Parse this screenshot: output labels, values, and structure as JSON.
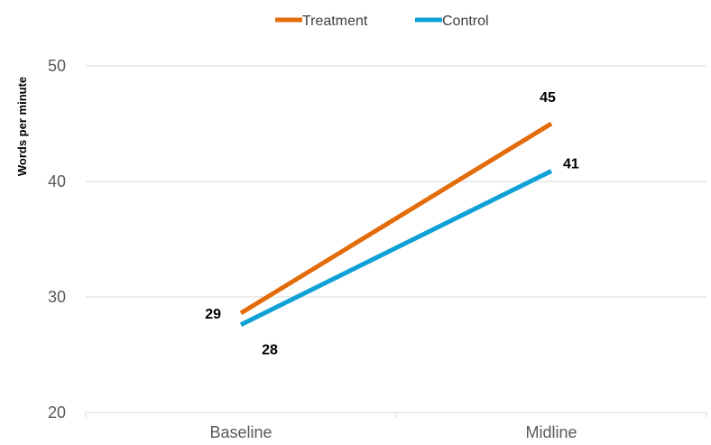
{
  "chart_data": {
    "type": "line",
    "title": "",
    "xlabel": "",
    "ylabel": "Words per minute",
    "categories": [
      "Baseline",
      "Midline"
    ],
    "ylim": [
      20,
      50
    ],
    "yticks": [
      20,
      30,
      40,
      50
    ],
    "grid": true,
    "legend_position": "top-center",
    "series": [
      {
        "name": "Treatment",
        "values": [
          28.6,
          45
        ],
        "labels": [
          "29",
          "45"
        ],
        "color": "#E36C0A"
      },
      {
        "name": "Control",
        "values": [
          27.6,
          40.9
        ],
        "labels": [
          "28",
          "41"
        ],
        "color": "#0FA1D6"
      }
    ]
  }
}
